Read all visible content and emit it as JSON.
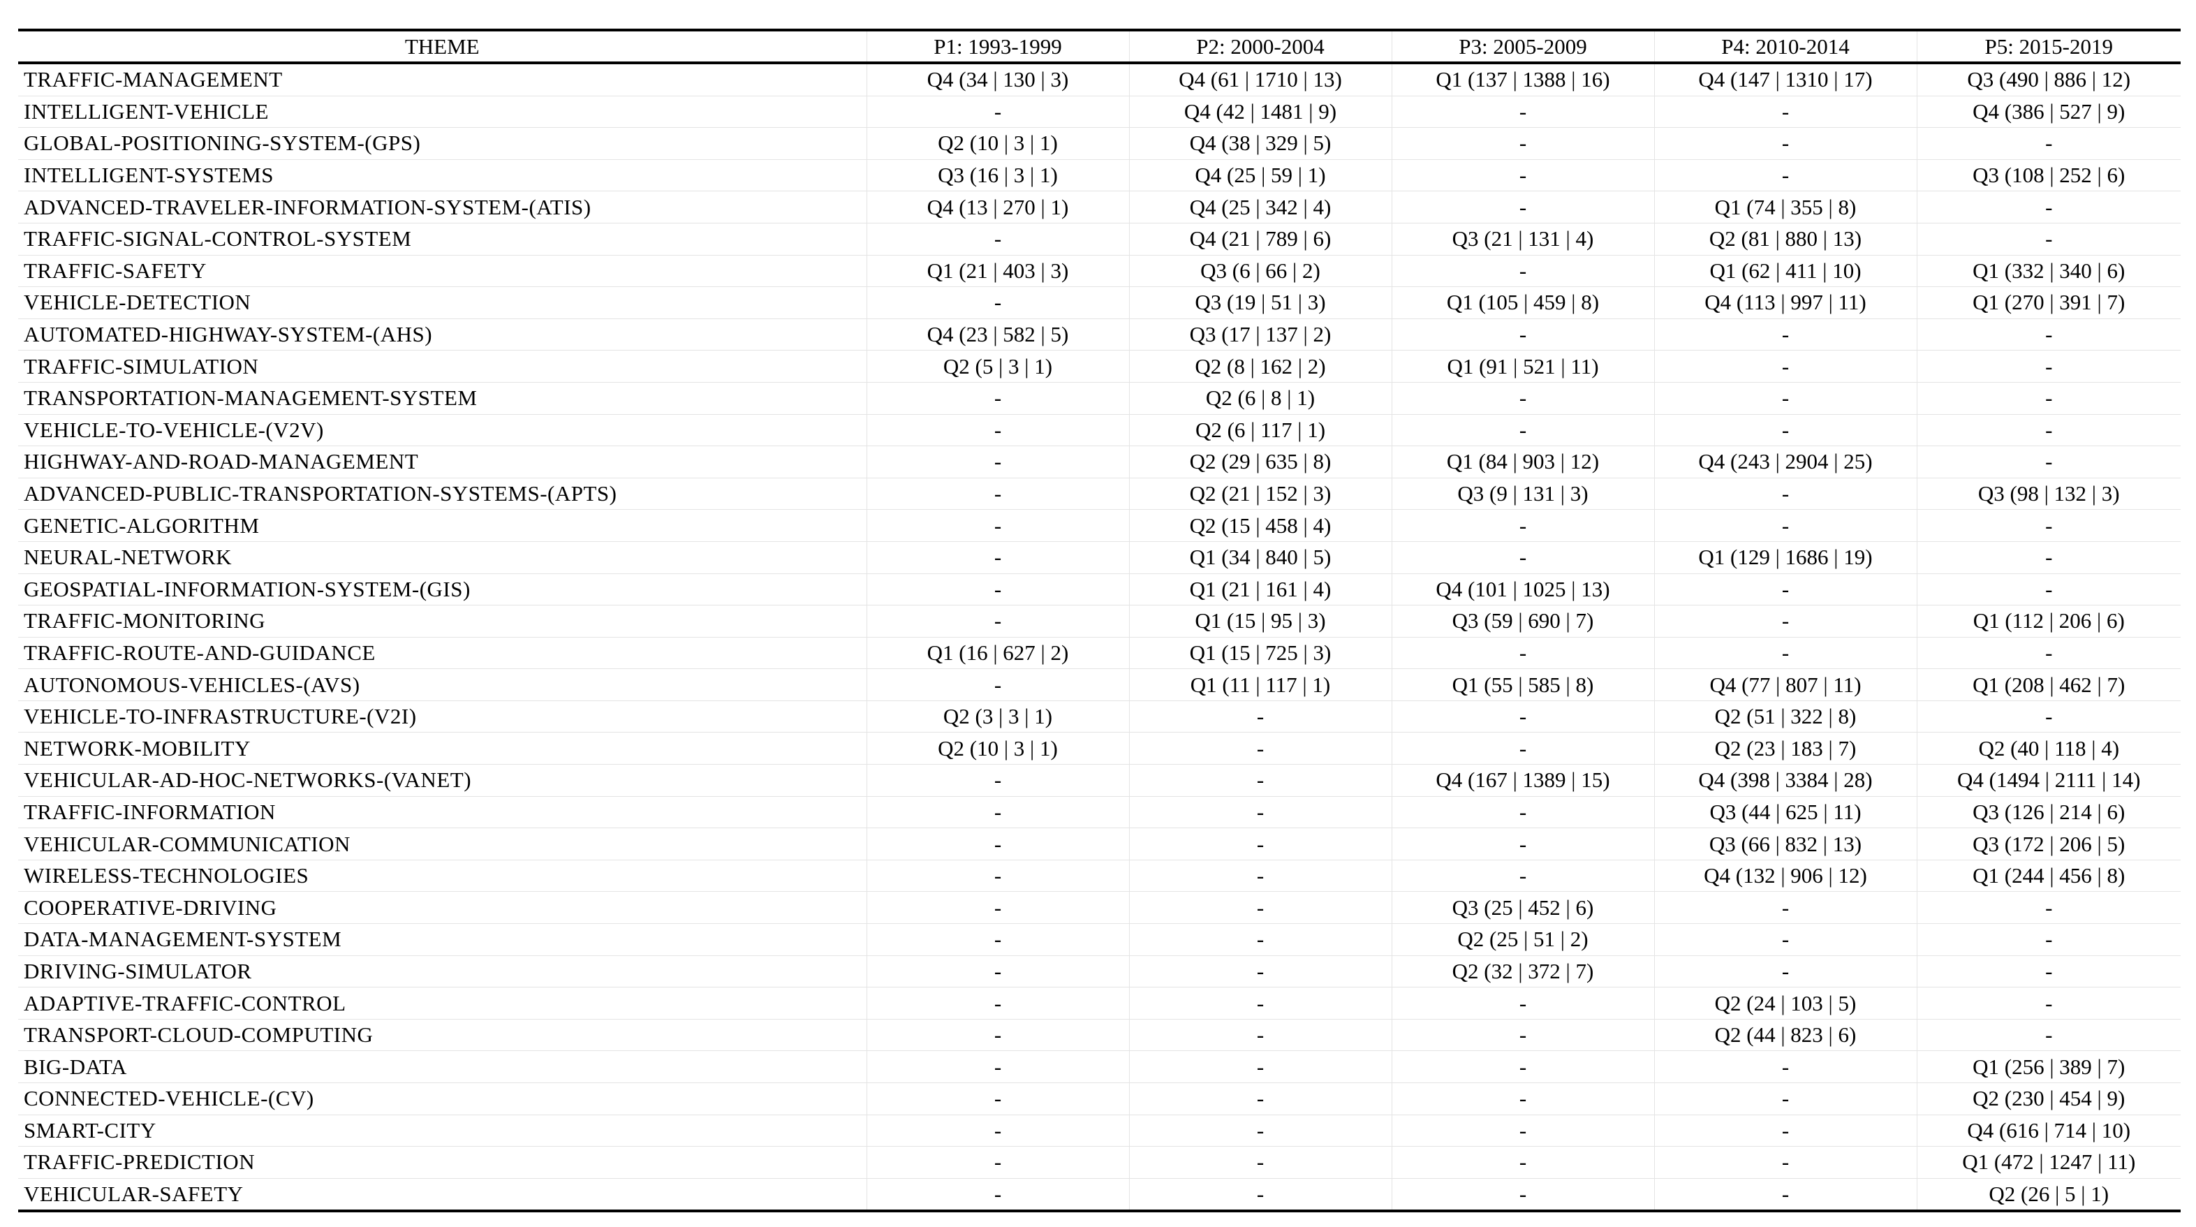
{
  "table": {
    "headers": [
      "THEME",
      "P1: 1993-1999",
      "P2: 2000-2004",
      "P3: 2005-2009",
      "P4: 2010-2014",
      "P5: 2015-2019"
    ],
    "rows": [
      [
        "TRAFFIC-MANAGEMENT",
        "Q4 (34 | 130 | 3)",
        "Q4 (61 | 1710 | 13)",
        "Q1 (137 | 1388 | 16)",
        "Q4 (147 | 1310 | 17)",
        "Q3 (490 | 886 | 12)"
      ],
      [
        "INTELLIGENT-VEHICLE",
        "-",
        "Q4 (42 | 1481 | 9)",
        "-",
        "-",
        "Q4 (386 | 527 | 9)"
      ],
      [
        "GLOBAL-POSITIONING-SYSTEM-(GPS)",
        "Q2 (10 | 3 | 1)",
        "Q4 (38 | 329 | 5)",
        "-",
        "-",
        "-"
      ],
      [
        "INTELLIGENT-SYSTEMS",
        "Q3 (16 | 3 | 1)",
        "Q4 (25 | 59 | 1)",
        "-",
        "-",
        "Q3 (108 | 252 | 6)"
      ],
      [
        "ADVANCED-TRAVELER-INFORMATION-SYSTEM-(ATIS)",
        "Q4 (13 | 270 | 1)",
        "Q4 (25 | 342 | 4)",
        "-",
        "Q1 (74 | 355 | 8)",
        "-"
      ],
      [
        "TRAFFIC-SIGNAL-CONTROL-SYSTEM",
        "-",
        "Q4 (21 | 789 | 6)",
        "Q3 (21 | 131 | 4)",
        "Q2 (81 | 880 | 13)",
        "-"
      ],
      [
        "TRAFFIC-SAFETY",
        "Q1 (21 | 403 | 3)",
        "Q3 (6 | 66 | 2)",
        "-",
        "Q1 (62 | 411 | 10)",
        "Q1 (332 | 340 | 6)"
      ],
      [
        "VEHICLE-DETECTION",
        "-",
        "Q3 (19 | 51 | 3)",
        "Q1 (105 | 459 | 8)",
        "Q4 (113 | 997 | 11)",
        "Q1 (270 | 391 | 7)"
      ],
      [
        "AUTOMATED-HIGHWAY-SYSTEM-(AHS)",
        "Q4 (23 | 582 | 5)",
        "Q3 (17 | 137 | 2)",
        "-",
        "-",
        "-"
      ],
      [
        "TRAFFIC-SIMULATION",
        "Q2 (5 | 3 | 1)",
        "Q2 (8 | 162 | 2)",
        "Q1 (91 | 521 | 11)",
        "-",
        "-"
      ],
      [
        "TRANSPORTATION-MANAGEMENT-SYSTEM",
        "-",
        "Q2 (6 | 8 | 1)",
        "-",
        "-",
        "-"
      ],
      [
        "VEHICLE-TO-VEHICLE-(V2V)",
        "-",
        "Q2 (6 | 117 | 1)",
        "-",
        "-",
        "-"
      ],
      [
        "HIGHWAY-AND-ROAD-MANAGEMENT",
        "-",
        "Q2 (29 | 635 | 8)",
        "Q1 (84 | 903 | 12)",
        "Q4 (243 | 2904 | 25)",
        "-"
      ],
      [
        "ADVANCED-PUBLIC-TRANSPORTATION-SYSTEMS-(APTS)",
        "-",
        "Q2 (21 | 152 | 3)",
        "Q3 (9 | 131 | 3)",
        "-",
        "Q3 (98 | 132 | 3)"
      ],
      [
        "GENETIC-ALGORITHM",
        "-",
        "Q2 (15 | 458 | 4)",
        "-",
        "-",
        "-"
      ],
      [
        "NEURAL-NETWORK",
        "-",
        "Q1 (34 | 840 | 5)",
        "-",
        "Q1 (129 | 1686 | 19)",
        "-"
      ],
      [
        "GEOSPATIAL-INFORMATION-SYSTEM-(GIS)",
        "-",
        "Q1 (21 | 161 | 4)",
        "Q4 (101 | 1025 | 13)",
        "-",
        "-"
      ],
      [
        "TRAFFIC-MONITORING",
        "-",
        "Q1 (15 | 95 | 3)",
        "Q3 (59 | 690 | 7)",
        "-",
        "Q1 (112 | 206 | 6)"
      ],
      [
        "TRAFFIC-ROUTE-AND-GUIDANCE",
        "Q1 (16 | 627 | 2)",
        "Q1 (15 | 725 | 3)",
        "-",
        "-",
        "-"
      ],
      [
        "AUTONOMOUS-VEHICLES-(AVS)",
        "-",
        "Q1 (11 | 117 | 1)",
        "Q1 (55 | 585 | 8)",
        "Q4 (77 | 807 | 11)",
        "Q1 (208 | 462 | 7)"
      ],
      [
        "VEHICLE-TO-INFRASTRUCTURE-(V2I)",
        "Q2 (3 | 3 | 1)",
        "-",
        "-",
        "Q2 (51 | 322 | 8)",
        "-"
      ],
      [
        "NETWORK-MOBILITY",
        "Q2 (10 | 3 | 1)",
        "-",
        "-",
        "Q2 (23 | 183 | 7)",
        "Q2 (40 | 118 | 4)"
      ],
      [
        "VEHICULAR-AD-HOC-NETWORKS-(VANET)",
        "-",
        "-",
        "Q4 (167 | 1389 | 15)",
        "Q4 (398 | 3384 | 28)",
        "Q4 (1494 | 2111 | 14)"
      ],
      [
        "TRAFFIC-INFORMATION",
        "-",
        "-",
        "-",
        "Q3 (44 | 625 | 11)",
        "Q3 (126 | 214 | 6)"
      ],
      [
        "VEHICULAR-COMMUNICATION",
        "-",
        "-",
        "-",
        "Q3 (66 | 832 | 13)",
        "Q3 (172 | 206 | 5)"
      ],
      [
        "WIRELESS-TECHNOLOGIES",
        "-",
        "-",
        "-",
        "Q4 (132 | 906 | 12)",
        "Q1 (244 | 456 | 8)"
      ],
      [
        "COOPERATIVE-DRIVING",
        "-",
        "-",
        "Q3 (25 | 452 | 6)",
        "-",
        "-"
      ],
      [
        "DATA-MANAGEMENT-SYSTEM",
        "-",
        "-",
        "Q2 (25 | 51 | 2)",
        "-",
        "-"
      ],
      [
        "DRIVING-SIMULATOR",
        "-",
        "-",
        "Q2 (32 | 372 | 7)",
        "-",
        "-"
      ],
      [
        "ADAPTIVE-TRAFFIC-CONTROL",
        "-",
        "-",
        "-",
        "Q2 (24 | 103 | 5)",
        "-"
      ],
      [
        "TRANSPORT-CLOUD-COMPUTING",
        "-",
        "-",
        "-",
        "Q2 (44 | 823 | 6)",
        "-"
      ],
      [
        "BIG-DATA",
        "-",
        "-",
        "-",
        "-",
        "Q1 (256 | 389 | 7)"
      ],
      [
        "CONNECTED-VEHICLE-(CV)",
        "-",
        "-",
        "-",
        "-",
        "Q2 (230 | 454 | 9)"
      ],
      [
        "SMART-CITY",
        "-",
        "-",
        "-",
        "-",
        "Q4 (616 | 714 | 10)"
      ],
      [
        "TRAFFIC-PREDICTION",
        "-",
        "-",
        "-",
        "-",
        "Q1 (472 | 1247 | 11)"
      ],
      [
        "VEHICULAR-SAFETY",
        "-",
        "-",
        "-",
        "-",
        "Q2 (26 | 5 | 1)"
      ]
    ]
  }
}
